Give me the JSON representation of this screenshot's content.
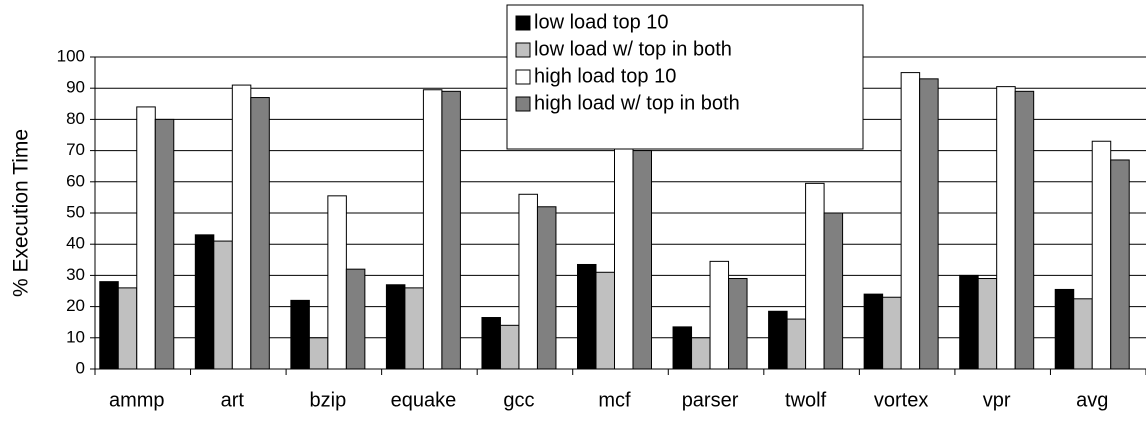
{
  "chart_data": {
    "type": "bar",
    "y_label": "% Execution Time",
    "categories": [
      "ammp",
      "art",
      "bzip",
      "equake",
      "gcc",
      "mcf",
      "parser",
      "twolf",
      "vortex",
      "vpr",
      "avg"
    ],
    "series": [
      {
        "name": "low load top 10",
        "color": "#000000",
        "values": [
          28,
          43,
          22,
          27,
          16.5,
          33.5,
          13.5,
          18.5,
          24,
          30,
          25.5
        ]
      },
      {
        "name": "low load w/ top in both",
        "color": "#c0c0c0",
        "values": [
          26,
          41,
          10,
          26,
          14,
          31,
          10,
          16,
          23,
          29,
          22.5
        ]
      },
      {
        "name": "high load top 10",
        "color": "#ffffff",
        "values": [
          84,
          91,
          55.5,
          89.5,
          56,
          76,
          34.5,
          59.5,
          95,
          90.5,
          73
        ]
      },
      {
        "name": "high load w/ top in both",
        "color": "#808080",
        "values": [
          80,
          87,
          32,
          89,
          52,
          70,
          29,
          50,
          93,
          89,
          67
        ]
      }
    ],
    "ylim": [
      0,
      100
    ],
    "yticks": [
      0,
      10,
      20,
      30,
      40,
      50,
      60,
      70,
      80,
      90,
      100
    ],
    "grid": true
  }
}
